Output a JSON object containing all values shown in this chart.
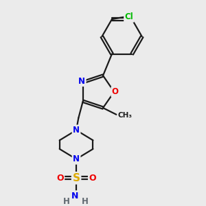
{
  "bg_color": "#ebebeb",
  "bond_color": "#1a1a1a",
  "bond_width": 1.6,
  "atom_colors": {
    "N": "#0000ee",
    "O": "#ee0000",
    "S": "#ddaa00",
    "Cl": "#00bb00",
    "C": "#1a1a1a",
    "H": "#606870"
  },
  "font_size_atom": 8.5
}
